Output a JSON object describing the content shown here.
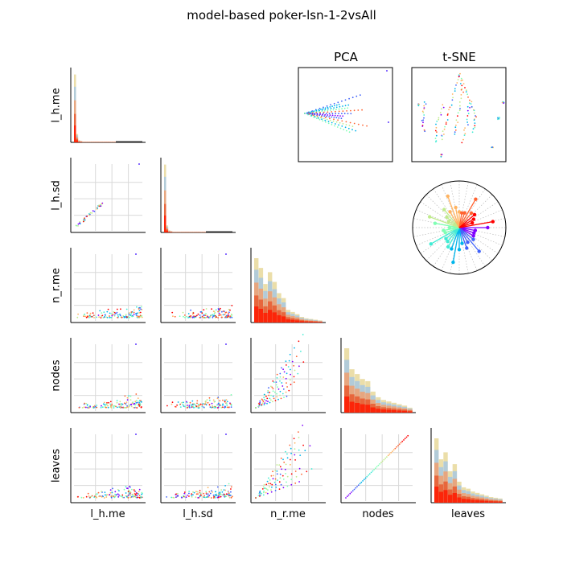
{
  "title": "model-based poker-lsn-1-2vsAll",
  "variables": [
    "l_h.me",
    "l_h.sd",
    "n_r.me",
    "nodes",
    "leaves"
  ],
  "panel_titles": {
    "pca": "PCA",
    "tsne": "t-SNE"
  },
  "chart_data": [
    {
      "type": "scatter",
      "subtype": "scatter-matrix",
      "title": "model-based poker-lsn-1-2vsAll",
      "variables": [
        "l_h.me",
        "l_h.sd",
        "n_r.me",
        "nodes",
        "leaves"
      ],
      "diagonal": "histogram",
      "grid": true,
      "colormap": "rainbow",
      "lower_triangle_pairs": [
        {
          "x": "l_h.me",
          "y": "l_h.sd",
          "pattern": "tight positive linear cluster near origin"
        },
        {
          "x": "l_h.me",
          "y": "n_r.me",
          "pattern": "dense near zero, one outlier high"
        },
        {
          "x": "l_h.sd",
          "y": "n_r.me",
          "pattern": "dense near zero, one outlier high"
        },
        {
          "x": "l_h.me",
          "y": "nodes",
          "pattern": "dense near zero, one outlier high"
        },
        {
          "x": "l_h.sd",
          "y": "nodes",
          "pattern": "dense near zero, one outlier high"
        },
        {
          "x": "n_r.me",
          "y": "nodes",
          "pattern": "fan of positive linear rays"
        },
        {
          "x": "l_h.me",
          "y": "leaves",
          "pattern": "dense near zero, one outlier high"
        },
        {
          "x": "l_h.sd",
          "y": "leaves",
          "pattern": "dense near zero, one outlier high"
        },
        {
          "x": "n_r.me",
          "y": "leaves",
          "pattern": "fan of positive linear rays"
        },
        {
          "x": "nodes",
          "y": "leaves",
          "pattern": "single perfect positive line"
        }
      ],
      "histograms": {
        "l_h.me": [
          0.97,
          0.12,
          0.03,
          0.02,
          0.01,
          0.01,
          0.01,
          0.01,
          0.01,
          0.01,
          0.01,
          0.01,
          0.01,
          0.01,
          0.01,
          0.01,
          0.01,
          0.01,
          0.01,
          0.01
        ],
        "l_h.sd": [
          0.97,
          0.1,
          0.03,
          0.02,
          0.01,
          0.01,
          0.01,
          0.01,
          0.01,
          0.01,
          0.01,
          0.01,
          0.01,
          0.01,
          0.01,
          0.01,
          0.01,
          0.01,
          0.01,
          0.01
        ],
        "n_r.me": [
          0.92,
          0.78,
          0.55,
          0.72,
          0.58,
          0.42,
          0.35,
          0.18,
          0.15,
          0.12,
          0.08,
          0.06,
          0.05,
          0.04,
          0.03
        ],
        "nodes": [
          0.92,
          0.62,
          0.55,
          0.48,
          0.45,
          0.3,
          0.22,
          0.18,
          0.16,
          0.14,
          0.12,
          0.1,
          0.07
        ],
        "leaves": [
          0.92,
          0.62,
          0.72,
          0.45,
          0.55,
          0.3,
          0.22,
          0.2,
          0.16,
          0.14,
          0.12,
          0.1,
          0.08,
          0.07,
          0.06
        ]
      }
    },
    {
      "type": "scatter",
      "title": "PCA",
      "pattern": "fan of rays emanating from a point on the left",
      "rays": 12
    },
    {
      "type": "scatter",
      "title": "t-SNE",
      "pattern": "curved strands and small clusters"
    },
    {
      "type": "polar",
      "title": "",
      "pattern": "star of colored spokes from center",
      "spokes": 32,
      "grid": true
    }
  ],
  "colors": {
    "palette": [
      "#8000ff",
      "#4062fa",
      "#00b5eb",
      "#40ecd4",
      "#80ffb4",
      "#c0eb8d",
      "#ffb360",
      "#ff6230",
      "#ff0000"
    ],
    "axis": "#000000",
    "grid": "#d9d9d9"
  }
}
